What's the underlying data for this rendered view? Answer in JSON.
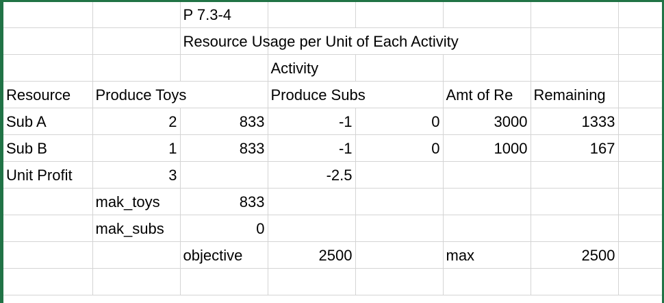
{
  "sheet": {
    "problem_id": "P 7.3-4",
    "title": "Resource Usage per Unit of Each Activity",
    "activity_header": "Activity",
    "headers": {
      "resource": "Resource",
      "produce_toys": "Produce Toys",
      "produce_subs": "Produce Subs",
      "amt_of_resource": "Amt of Re",
      "remaining": "Remaining"
    },
    "rows": [
      {
        "label": "Sub A",
        "toys": "2",
        "toys_used": "833",
        "subs": "-1",
        "subs_used": "0",
        "amount": "3000",
        "remaining": "1333"
      },
      {
        "label": "Sub B",
        "toys": "1",
        "toys_used": "833",
        "subs": "-1",
        "subs_used": "0",
        "amount": "1000",
        "remaining": "167"
      }
    ],
    "unit_profit": {
      "label": "Unit Profit",
      "toys": "3",
      "subs": "-2.5"
    },
    "decision_vars": [
      {
        "name": "mak_toys",
        "value": "833"
      },
      {
        "name": "mak_subs",
        "value": "0"
      }
    ],
    "objective": {
      "label": "objective",
      "value": "2500",
      "max_label": "max",
      "max_value": "2500"
    }
  },
  "colors": {
    "grid_line": "#d4d4d4",
    "frame": "#217346"
  }
}
